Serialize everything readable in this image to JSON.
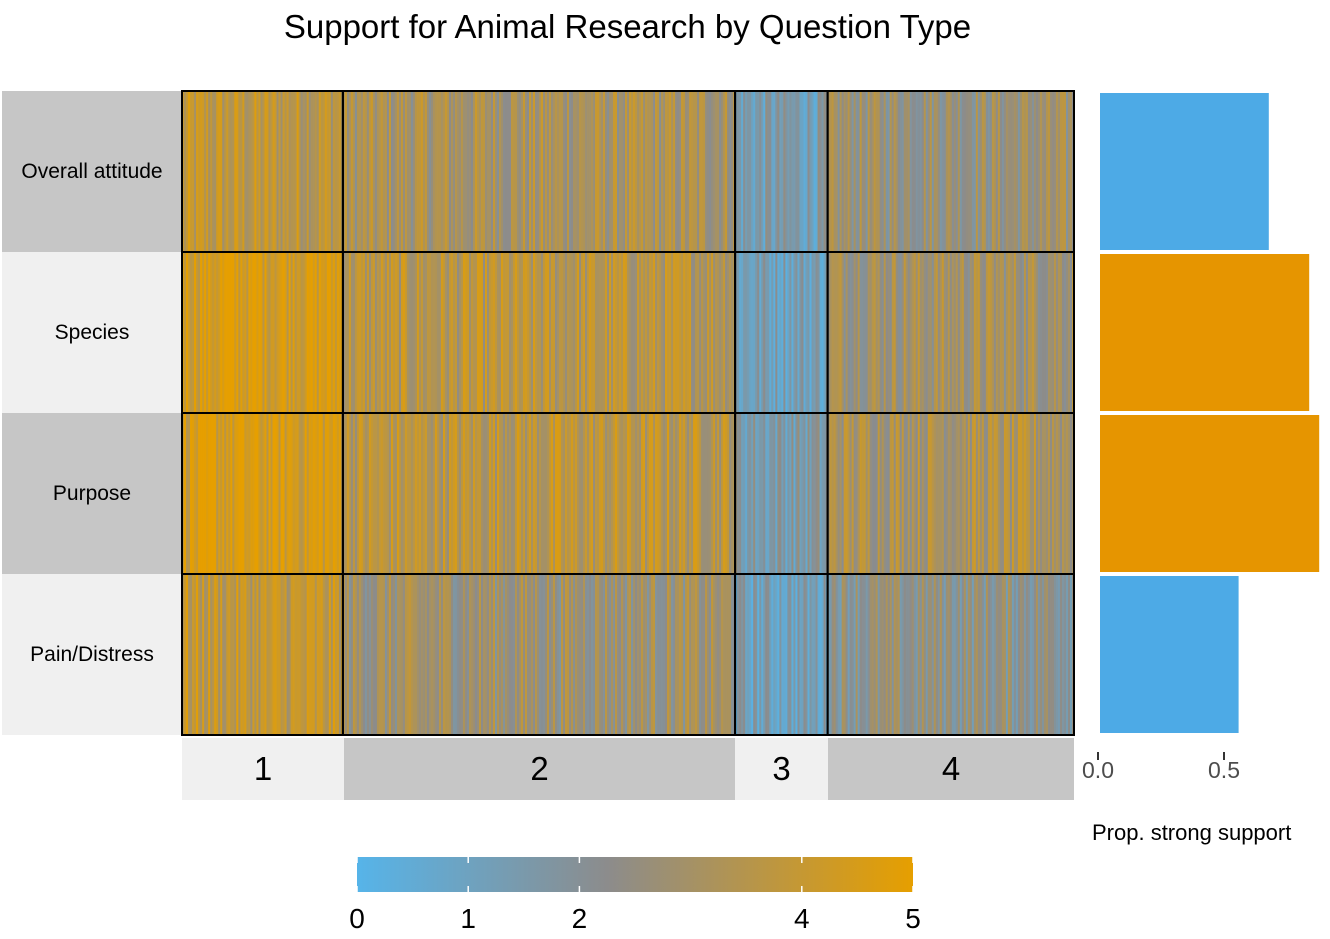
{
  "chart_data": [
    {
      "type": "heatmap",
      "title": "Support for Animal Research by Question Type",
      "rows": [
        "Overall attitude",
        "Species",
        "Purpose",
        "Pain/Distress"
      ],
      "columns": [
        "1",
        "2",
        "3",
        "4"
      ],
      "column_widths_respondents": [
        160,
        390,
        92,
        245
      ],
      "mean_values": [
        [
          3.7,
          3.1,
          1.4,
          2.7
        ],
        [
          4.6,
          3.5,
          1.3,
          3.0
        ],
        [
          4.5,
          3.6,
          1.6,
          3.2
        ],
        [
          3.8,
          2.8,
          1.2,
          2.3
        ]
      ],
      "color_scale": {
        "min": 0,
        "max": 5,
        "low_color": "#56B4E9",
        "mid_color": "#8C8C8C",
        "high_color": "#E69F00",
        "ticks": [
          0,
          1,
          2,
          4,
          5
        ]
      }
    },
    {
      "type": "bar",
      "orientation": "horizontal",
      "categories": [
        "Overall attitude",
        "Species",
        "Purpose",
        "Pain/Distress"
      ],
      "values": [
        0.67,
        0.83,
        0.87,
        0.55
      ],
      "colors": [
        "#4DAAE6",
        "#E69500",
        "#E69500",
        "#4DAAE6"
      ],
      "xlabel": "Prop. strong support",
      "xticks": [
        0.0,
        0.5
      ],
      "xtick_labels": [
        "0.0",
        "0.5"
      ]
    }
  ]
}
